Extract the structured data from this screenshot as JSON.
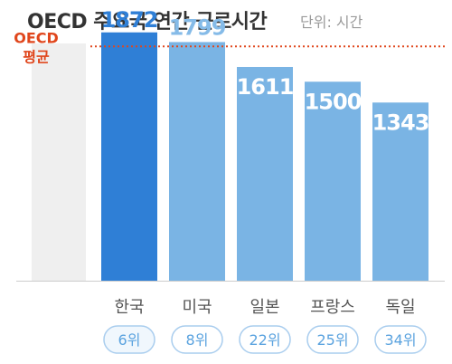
{
  "chart_data": {
    "type": "bar",
    "title": "OECD 주요국 연간 근로시간",
    "unit": "단위: 시간",
    "categories": [
      "한국",
      "미국",
      "일본",
      "프랑스",
      "독일"
    ],
    "values": [
      1872,
      1799,
      1611,
      1500,
      1343
    ],
    "ranks": [
      "6위",
      "8위",
      "22위",
      "25위",
      "34위"
    ],
    "average": {
      "label_line1": "OECD",
      "label_line2": "평균",
      "value": 1766
    },
    "ylim": [
      0,
      2000
    ],
    "grid": false,
    "colors": {
      "highlight": "#2f7fd6",
      "bar": "#7ab4e4",
      "highlight_value": "#2f7fd6",
      "highlight_value_alt": "#85bbe8",
      "average": "#e0461c",
      "background_band": "#efefef",
      "rank_border": "#a9cdee",
      "rank_text": "#5ba3df",
      "category_text": "#555555"
    }
  }
}
